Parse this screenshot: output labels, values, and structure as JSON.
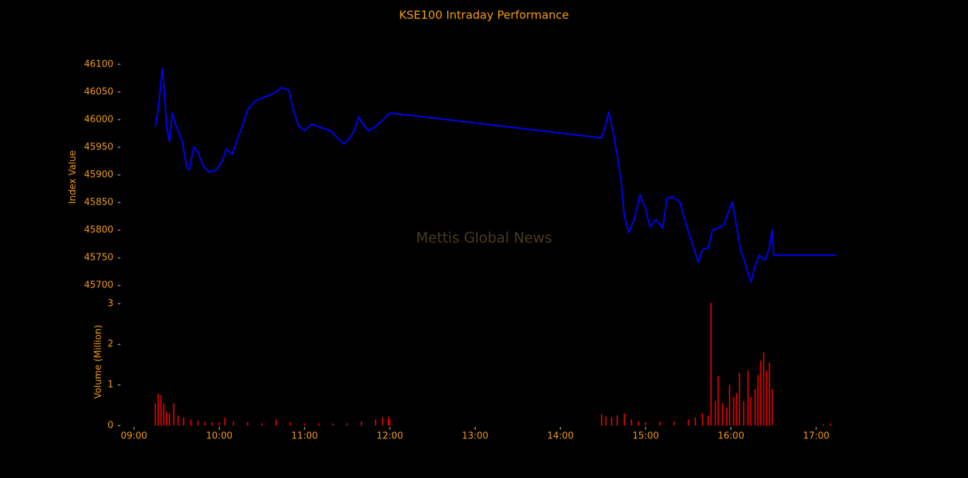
{
  "chart_data": [
    {
      "type": "line",
      "title": "KSE100 Intraday Performance",
      "annotation": "Mettis Global News",
      "y_label": "Index Value",
      "color": "#0000ff",
      "x": [
        "09:15",
        "09:17",
        "09:20",
        "09:21",
        "09:23",
        "09:25",
        "09:27",
        "09:29",
        "09:31",
        "09:34",
        "09:37",
        "09:39",
        "09:42",
        "09:45",
        "09:49",
        "09:53",
        "09:58",
        "10:02",
        "10:05",
        "10:09",
        "10:13",
        "10:16",
        "10:20",
        "10:25",
        "10:31",
        "10:38",
        "10:44",
        "10:49",
        "10:52",
        "10:56",
        "11:00",
        "11:05",
        "11:11",
        "11:18",
        "11:23",
        "11:28",
        "11:31",
        "11:35",
        "11:38",
        "11:41",
        "11:45",
        "11:50",
        "11:55",
        "11:59",
        "12:00",
        "14:29",
        "14:32",
        "14:34",
        "14:37",
        "14:40",
        "14:43",
        "14:45",
        "14:48",
        "14:52",
        "14:56",
        "15:00",
        "15:03",
        "15:07",
        "15:12",
        "15:15",
        "15:19",
        "15:24",
        "15:29",
        "15:33",
        "15:37",
        "15:40",
        "15:44",
        "15:47",
        "15:51",
        "15:55",
        "15:58",
        "16:01",
        "16:04",
        "16:07",
        "16:09",
        "16:12",
        "16:14",
        "16:17",
        "16:20",
        "16:24",
        "16:27",
        "16:29",
        "16:30",
        "17:14"
      ],
      "values": [
        45987,
        46018,
        46092,
        46063,
        45986,
        45960,
        46012,
        45992,
        45980,
        45960,
        45915,
        45909,
        45951,
        45941,
        45915,
        45905,
        45909,
        45924,
        45947,
        45937,
        45967,
        45986,
        46018,
        46033,
        46040,
        46047,
        46058,
        46053,
        46018,
        45988,
        45980,
        45992,
        45986,
        45980,
        45967,
        45956,
        45964,
        45980,
        46005,
        45992,
        45980,
        45988,
        45999,
        46009,
        46012,
        45967,
        45992,
        46014,
        45980,
        45935,
        45883,
        45826,
        45796,
        45819,
        45864,
        45838,
        45806,
        45819,
        45804,
        45858,
        45860,
        45851,
        45806,
        45774,
        45742,
        45765,
        45768,
        45800,
        45804,
        45809,
        45832,
        45851,
        45806,
        45762,
        45749,
        45723,
        45706,
        45736,
        45755,
        45745,
        45768,
        45800,
        45755,
        45755
      ],
      "xlim": [
        "08:45",
        "17:30"
      ],
      "ylim": [
        45690,
        46110
      ],
      "yticks": [
        45700,
        45750,
        45800,
        45850,
        45900,
        45950,
        46000,
        46050,
        46100
      ]
    },
    {
      "type": "bar",
      "y_label": "Volume (Million)",
      "color": "#ff0000",
      "x": [
        "09:15",
        "09:17",
        "09:19",
        "09:21",
        "09:23",
        "09:25",
        "09:28",
        "09:31",
        "09:35",
        "09:40",
        "09:45",
        "09:50",
        "09:55",
        "10:00",
        "10:04",
        "10:10",
        "10:20",
        "10:30",
        "10:40",
        "10:50",
        "11:00",
        "11:10",
        "11:20",
        "11:30",
        "11:40",
        "11:50",
        "11:55",
        "11:59",
        "12:00",
        "14:29",
        "14:32",
        "14:36",
        "14:40",
        "14:45",
        "14:50",
        "14:55",
        "15:00",
        "15:10",
        "15:20",
        "15:30",
        "15:35",
        "15:40",
        "15:44",
        "15:46",
        "15:49",
        "15:51",
        "15:54",
        "15:57",
        "15:59",
        "16:02",
        "16:04",
        "16:06",
        "16:09",
        "16:12",
        "16:14",
        "16:17",
        "16:19",
        "16:21",
        "16:23",
        "16:25",
        "16:27",
        "16:29",
        "17:05",
        "17:10"
      ],
      "values": [
        0.55,
        0.78,
        0.75,
        0.55,
        0.35,
        0.3,
        0.55,
        0.25,
        0.2,
        0.15,
        0.12,
        0.1,
        0.08,
        0.08,
        0.2,
        0.1,
        0.08,
        0.06,
        0.15,
        0.08,
        0.05,
        0.06,
        0.05,
        0.06,
        0.1,
        0.15,
        0.2,
        0.22,
        0.15,
        0.28,
        0.22,
        0.2,
        0.25,
        0.3,
        0.15,
        0.1,
        0.08,
        0.1,
        0.1,
        0.15,
        0.2,
        0.3,
        0.25,
        3.02,
        0.6,
        1.22,
        0.55,
        0.45,
        1.0,
        0.7,
        0.8,
        1.3,
        0.6,
        1.35,
        0.7,
        0.9,
        1.25,
        1.6,
        1.8,
        1.35,
        1.55,
        0.9,
        0.03,
        0.05
      ],
      "xlim": [
        "08:45",
        "17:30"
      ],
      "ylim": [
        0,
        3.05
      ],
      "yticks": [
        0,
        1,
        2,
        3
      ],
      "xticks": [
        "09:00",
        "10:00",
        "11:00",
        "12:00",
        "13:00",
        "14:00",
        "15:00",
        "16:00",
        "17:00"
      ]
    }
  ]
}
